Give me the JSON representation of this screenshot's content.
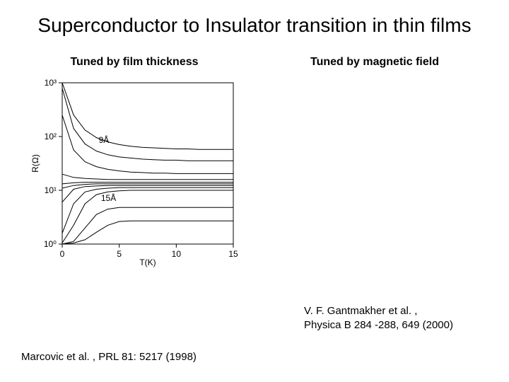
{
  "title": "Superconductor to Insulator transition in thin films",
  "left": {
    "subhead": "Tuned by film thickness",
    "citation": "Marcovic et al. , PRL 81: 5217 (1998)",
    "chart": {
      "type": "line",
      "background_color": "#ffffff",
      "axis_color": "#000000",
      "line_color": "#000000",
      "line_width": 1,
      "xlabel": "T(K)",
      "ylabel": "R(Ω)",
      "label_fontsize": 12,
      "x_scale": "linear",
      "y_scale": "log",
      "xlim": [
        0,
        15
      ],
      "ylim_exp": [
        0,
        3
      ],
      "xticks": [
        0,
        5,
        10,
        15
      ],
      "ytick_exp": [
        0,
        1,
        2,
        3
      ],
      "ytick_labels": [
        "10⁰",
        "10¹",
        "10²",
        "10³"
      ],
      "inset_labels": [
        {
          "text": "9Å",
          "x": 3.2,
          "y_exp": 1.88
        },
        {
          "text": "15Å",
          "x": 3.4,
          "y_exp": 0.8
        }
      ],
      "series_y_exp": [
        [
          3.0,
          2.4,
          2.12,
          1.98,
          1.9,
          1.85,
          1.82,
          1.8,
          1.79,
          1.78,
          1.77,
          1.77,
          1.76,
          1.76,
          1.76,
          1.76
        ],
        [
          2.9,
          2.15,
          1.86,
          1.73,
          1.66,
          1.62,
          1.6,
          1.58,
          1.57,
          1.56,
          1.56,
          1.55,
          1.55,
          1.55,
          1.55,
          1.55
        ],
        [
          2.4,
          1.75,
          1.53,
          1.44,
          1.39,
          1.36,
          1.34,
          1.33,
          1.32,
          1.32,
          1.31,
          1.31,
          1.31,
          1.31,
          1.31,
          1.31
        ],
        [
          1.3,
          1.24,
          1.22,
          1.21,
          1.2,
          1.2,
          1.2,
          1.2,
          1.2,
          1.2,
          1.2,
          1.2,
          1.2,
          1.2,
          1.2,
          1.2
        ],
        [
          1.12,
          1.14,
          1.15,
          1.15,
          1.15,
          1.15,
          1.15,
          1.15,
          1.15,
          1.15,
          1.15,
          1.15,
          1.15,
          1.15,
          1.15,
          1.15
        ],
        [
          1.04,
          1.09,
          1.11,
          1.12,
          1.12,
          1.12,
          1.12,
          1.12,
          1.12,
          1.12,
          1.12,
          1.12,
          1.12,
          1.12,
          1.12,
          1.12
        ],
        [
          0.78,
          1.02,
          1.07,
          1.08,
          1.09,
          1.09,
          1.09,
          1.09,
          1.09,
          1.09,
          1.09,
          1.09,
          1.09,
          1.09,
          1.09,
          1.09
        ],
        [
          0.2,
          0.75,
          0.97,
          1.02,
          1.04,
          1.05,
          1.05,
          1.05,
          1.05,
          1.05,
          1.05,
          1.05,
          1.05,
          1.05,
          1.05,
          1.05
        ],
        [
          0.02,
          0.35,
          0.75,
          0.92,
          0.97,
          0.99,
          1.0,
          1.0,
          1.0,
          1.0,
          1.0,
          1.0,
          1.0,
          1.0,
          1.0,
          1.0
        ],
        [
          0.0,
          0.05,
          0.3,
          0.55,
          0.65,
          0.68,
          0.68,
          0.68,
          0.68,
          0.68,
          0.68,
          0.68,
          0.68,
          0.68,
          0.68,
          0.68
        ],
        [
          0.0,
          0.02,
          0.08,
          0.22,
          0.35,
          0.42,
          0.43,
          0.43,
          0.43,
          0.43,
          0.43,
          0.43,
          0.43,
          0.43,
          0.43,
          0.43
        ]
      ],
      "series_x": [
        0,
        1,
        2,
        3,
        4,
        5,
        6,
        7,
        8,
        9,
        10,
        11,
        12,
        13,
        14,
        15
      ]
    }
  },
  "right": {
    "subhead": "Tuned by magnetic field",
    "citation_line1": "V. F. Gantmakher et al. ,",
    "citation_line2": "Physica B 284 -288, 649 (2000)"
  }
}
